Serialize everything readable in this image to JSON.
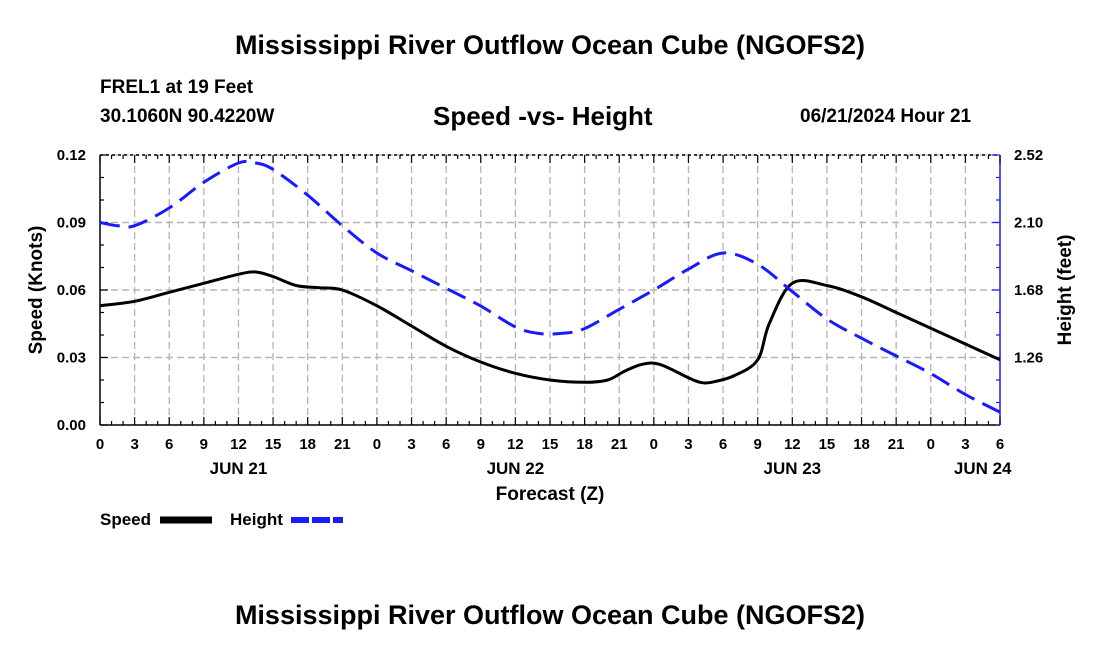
{
  "header": {
    "main_title": "Mississippi River Outflow Ocean Cube (NGOFS2)",
    "station": "FREL1 at 19 Feet",
    "coords": "30.1060N  90.4220W",
    "datetime": "06/21/2024 Hour 21",
    "bottom_title": "Mississippi River Outflow Ocean Cube (NGOFS2)"
  },
  "chart_data": {
    "type": "line",
    "title": "Speed -vs- Height",
    "xlabel": "Forecast (Z)",
    "ylabel": "Speed (Knots)",
    "y2label": "Height (feet)",
    "x_unit": "hours from Jun 21 00Z",
    "xlim": [
      0,
      78
    ],
    "ylim": [
      0,
      0.12
    ],
    "y2lim": [
      0.84,
      2.52
    ],
    "x_ticks": [
      0,
      3,
      6,
      9,
      12,
      15,
      18,
      21,
      24,
      27,
      30,
      33,
      36,
      39,
      42,
      45,
      48,
      51,
      54,
      57,
      60,
      63,
      66,
      69,
      72,
      75,
      78
    ],
    "x_tick_labels": [
      "0",
      "3",
      "6",
      "9",
      "12",
      "15",
      "18",
      "21",
      "0",
      "3",
      "6",
      "9",
      "12",
      "15",
      "18",
      "21",
      "0",
      "3",
      "6",
      "9",
      "12",
      "15",
      "18",
      "21",
      "0",
      "3",
      "6"
    ],
    "date_labels": [
      {
        "x": 12,
        "label": "JUN 21"
      },
      {
        "x": 36,
        "label": "JUN 22"
      },
      {
        "x": 60,
        "label": "JUN 23"
      },
      {
        "x": 76.5,
        "label": "JUN 24"
      }
    ],
    "y_ticks": [
      0,
      0.03,
      0.06,
      0.09,
      0.12
    ],
    "y_tick_labels": [
      "0.00",
      "0.03",
      "0.06",
      "0.09",
      "0.12"
    ],
    "y2_ticks": [
      1.26,
      1.68,
      2.1,
      2.52
    ],
    "y2_tick_labels": [
      "1.26",
      "1.68",
      "2.10",
      "2.52"
    ],
    "grid": true,
    "legend_position": "bottom-left",
    "series": [
      {
        "name": "Speed",
        "axis": "left",
        "color": "#000000",
        "style": "solid",
        "x": [
          0,
          3,
          6,
          9,
          12,
          13.5,
          15,
          17,
          19,
          21,
          24,
          27,
          30,
          33,
          36,
          39,
          42,
          44,
          45.5,
          47,
          48.5,
          51,
          52,
          53,
          55,
          57,
          58,
          60,
          63,
          66,
          69,
          72,
          75,
          78
        ],
        "y": [
          0.053,
          0.055,
          0.059,
          0.063,
          0.067,
          0.068,
          0.066,
          0.062,
          0.061,
          0.06,
          0.053,
          0.044,
          0.035,
          0.028,
          0.023,
          0.02,
          0.019,
          0.02,
          0.024,
          0.027,
          0.027,
          0.021,
          0.019,
          0.019,
          0.022,
          0.029,
          0.045,
          0.063,
          0.062,
          0.057,
          0.05,
          0.043,
          0.036,
          0.029
        ]
      },
      {
        "name": "Height",
        "axis": "right",
        "color": "#1a1aff",
        "style": "dashed",
        "x": [
          0,
          1.5,
          3,
          6,
          9,
          12,
          13.5,
          15,
          18,
          21,
          24,
          27,
          30,
          33,
          36,
          38,
          40,
          42,
          45,
          48,
          51,
          54,
          57,
          60,
          63,
          66,
          69,
          72,
          75,
          78
        ],
        "y": [
          2.1,
          2.08,
          2.08,
          2.19,
          2.35,
          2.47,
          2.47,
          2.43,
          2.27,
          2.08,
          1.91,
          1.8,
          1.69,
          1.58,
          1.45,
          1.41,
          1.41,
          1.44,
          1.56,
          1.68,
          1.81,
          1.91,
          1.84,
          1.67,
          1.5,
          1.38,
          1.27,
          1.16,
          1.03,
          0.92
        ]
      }
    ]
  },
  "legend": {
    "speed_label": "Speed",
    "height_label": "Height"
  }
}
